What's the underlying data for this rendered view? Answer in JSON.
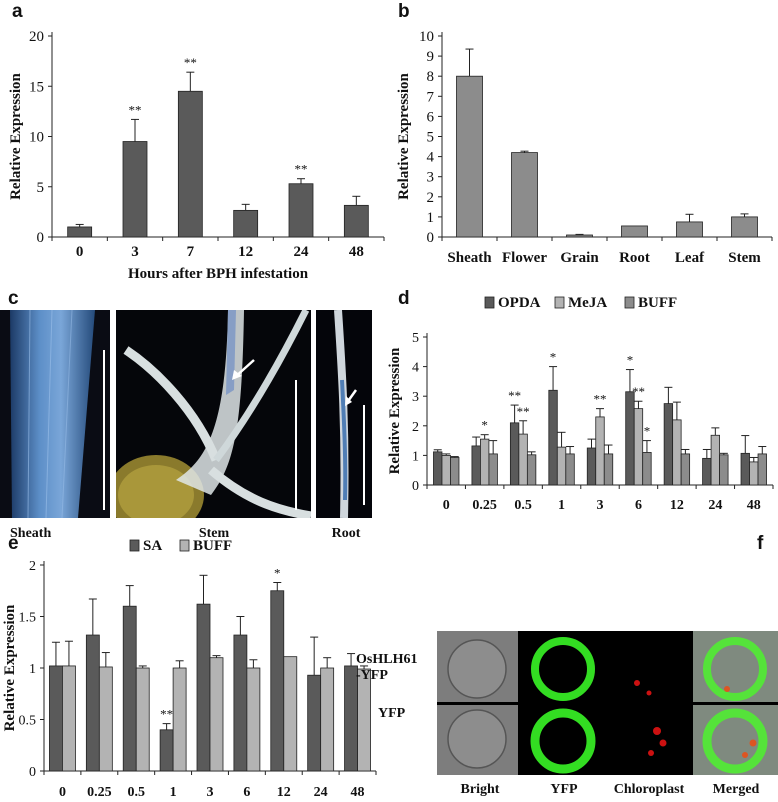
{
  "panels": {
    "a": "a",
    "b": "b",
    "c": "c",
    "d": "d",
    "e": "e",
    "f": "f"
  },
  "colors": {
    "dark_bar": "#5a5a5a",
    "light_bar": "#b3b3b3",
    "mid_bar": "#8c8c8c",
    "cell_green": "#33dd22",
    "chloroplast_red": "#cc1111",
    "stain_blue": "#3a6fae"
  },
  "photo_c": {
    "captions": [
      "Sheath",
      "Stem",
      "Root"
    ]
  },
  "photo_f": {
    "row_labels": [
      "OsHLH61\n-YFP",
      "YFP"
    ],
    "col_labels": [
      "Bright",
      "YFP",
      "Chloroplast",
      "Merged"
    ]
  },
  "chart_data": [
    {
      "panel": "a",
      "type": "bar",
      "xlabel": "Hours after BPH infestation",
      "ylabel": "Relative Expression",
      "ylim": [
        0,
        20
      ],
      "yticks": [
        0,
        5,
        10,
        15,
        20
      ],
      "categories": [
        "0",
        "3",
        "7",
        "12",
        "24",
        "48"
      ],
      "series": [
        {
          "values": [
            1.0,
            9.5,
            14.5,
            2.65,
            5.3,
            3.15
          ],
          "errors": [
            0.25,
            2.2,
            1.9,
            0.6,
            0.5,
            0.9
          ],
          "significance": [
            "",
            "**",
            "**",
            "",
            "**",
            ""
          ]
        }
      ]
    },
    {
      "panel": "b",
      "type": "bar",
      "xlabel": "",
      "ylabel": "Relative Expression",
      "ylim": [
        0,
        10
      ],
      "yticks": [
        0,
        1,
        2,
        3,
        4,
        5,
        6,
        7,
        8,
        9,
        10
      ],
      "categories": [
        "Sheath",
        "Flower",
        "Grain",
        "Root",
        "Leaf",
        "Stem"
      ],
      "series": [
        {
          "values": [
            8.0,
            4.2,
            0.1,
            0.55,
            0.75,
            1.0
          ],
          "errors": [
            1.35,
            0.07,
            0.03,
            0.0,
            0.38,
            0.15
          ],
          "significance": [
            "",
            "",
            "",
            "",
            "",
            ""
          ]
        }
      ]
    },
    {
      "panel": "d",
      "type": "bar",
      "xlabel": "",
      "ylabel": "Relative Expression",
      "ylim": [
        0,
        5
      ],
      "yticks": [
        0,
        1,
        2,
        3,
        4,
        5
      ],
      "legend": [
        "OPDA",
        "MeJA",
        "BUFF"
      ],
      "categories": [
        "0",
        "0.25",
        "0.5",
        "1",
        "3",
        "6",
        "12",
        "24",
        "48"
      ],
      "series": [
        {
          "name": "OPDA",
          "values": [
            1.12,
            1.32,
            2.1,
            3.2,
            1.25,
            3.15,
            2.75,
            0.9,
            1.07
          ],
          "errors": [
            0.07,
            0.3,
            0.6,
            0.8,
            0.3,
            0.75,
            0.55,
            0.3,
            0.6
          ],
          "significance": [
            "",
            "",
            "**",
            "*",
            "",
            "*",
            "",
            "",
            ""
          ]
        },
        {
          "name": "MeJA",
          "values": [
            1.0,
            1.55,
            1.72,
            1.28,
            2.3,
            2.58,
            2.2,
            1.68,
            0.78
          ],
          "errors": [
            0.05,
            0.15,
            0.45,
            0.5,
            0.28,
            0.25,
            0.6,
            0.25,
            0.15
          ],
          "significance": [
            "",
            "*",
            "**",
            "",
            "**",
            "**",
            "",
            "",
            ""
          ]
        },
        {
          "name": "BUFF",
          "values": [
            0.93,
            1.05,
            1.02,
            1.05,
            1.05,
            1.1,
            1.05,
            1.02,
            1.05
          ],
          "errors": [
            0.03,
            0.45,
            0.1,
            0.25,
            0.3,
            0.4,
            0.15,
            0.05,
            0.25
          ],
          "significance": [
            "",
            "",
            "",
            "",
            "",
            "*",
            "",
            "",
            ""
          ]
        }
      ]
    },
    {
      "panel": "e",
      "type": "bar",
      "xlabel": "",
      "ylabel": "Relative Expression",
      "ylim": [
        0,
        2
      ],
      "yticks": [
        0,
        0.5,
        1,
        1.5,
        2
      ],
      "legend": [
        "SA",
        "BUFF"
      ],
      "categories": [
        "0",
        "0.25",
        "0.5",
        "1",
        "3",
        "6",
        "12",
        "24",
        "48"
      ],
      "series": [
        {
          "name": "SA",
          "values": [
            1.02,
            1.32,
            1.6,
            0.4,
            1.62,
            1.32,
            1.75,
            0.93,
            1.02
          ],
          "errors": [
            0.23,
            0.35,
            0.2,
            0.06,
            0.28,
            0.18,
            0.08,
            0.37,
            0.12
          ],
          "significance": [
            "",
            "",
            "",
            "**",
            "",
            "",
            "*",
            "",
            ""
          ]
        },
        {
          "name": "BUFF",
          "values": [
            1.02,
            1.01,
            1.0,
            1.0,
            1.1,
            1.0,
            1.11,
            1.0,
            0.99
          ],
          "errors": [
            0.24,
            0.14,
            0.02,
            0.07,
            0.02,
            0.08,
            0.0,
            0.1,
            0.03
          ],
          "significance": [
            "",
            "",
            "",
            "",
            "",
            "",
            "",
            "",
            ""
          ]
        }
      ]
    }
  ]
}
